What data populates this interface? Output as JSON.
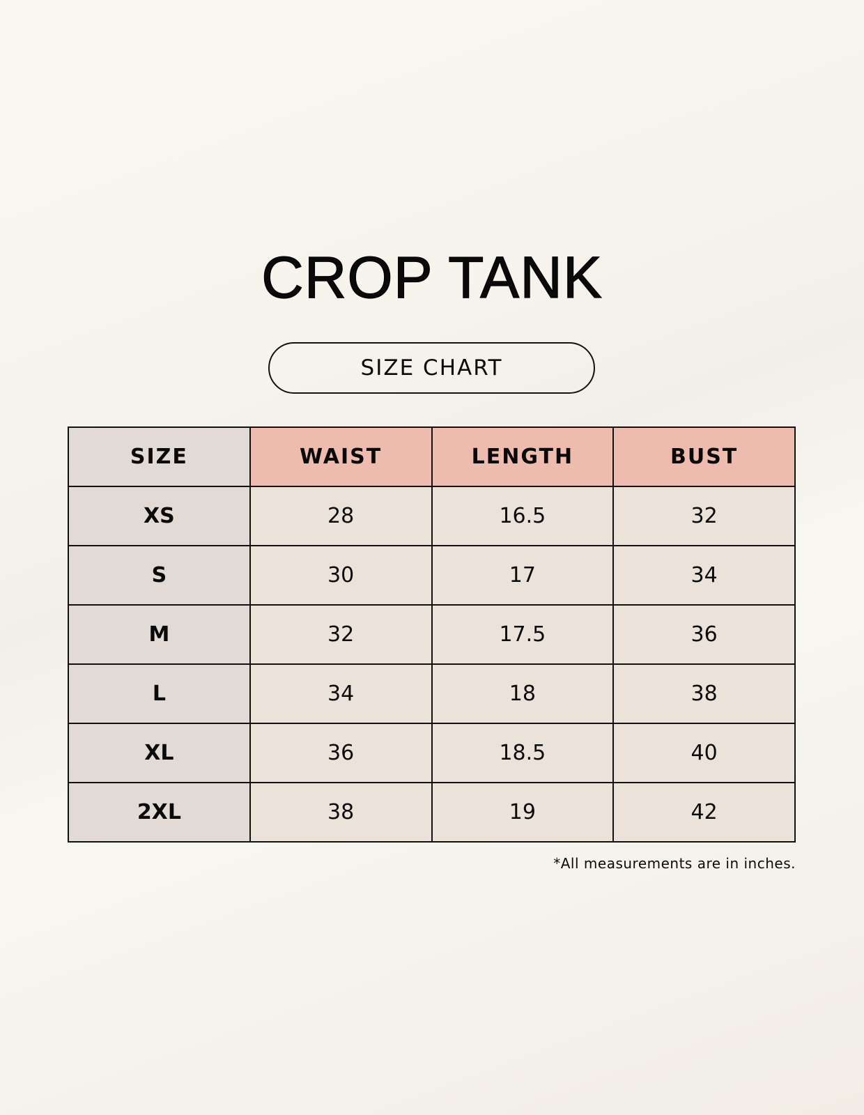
{
  "title": "CROP TANK",
  "subtitle": "SIZE CHART",
  "table": {
    "headers": [
      "SIZE",
      "WAIST",
      "LENGTH",
      "BUST"
    ],
    "rows": [
      [
        "XS",
        "28",
        "16.5",
        "32"
      ],
      [
        "S",
        "30",
        "17",
        "34"
      ],
      [
        "M",
        "32",
        "17.5",
        "36"
      ],
      [
        "L",
        "34",
        "18",
        "38"
      ],
      [
        "XL",
        "36",
        "18.5",
        "40"
      ],
      [
        "2XL",
        "38",
        "19",
        "42"
      ]
    ]
  },
  "note": "*All measurements are in inches.",
  "colors": {
    "header_accent": "#eebcae",
    "size_column": "#e2dad5",
    "cell": "#ebe3d9"
  }
}
